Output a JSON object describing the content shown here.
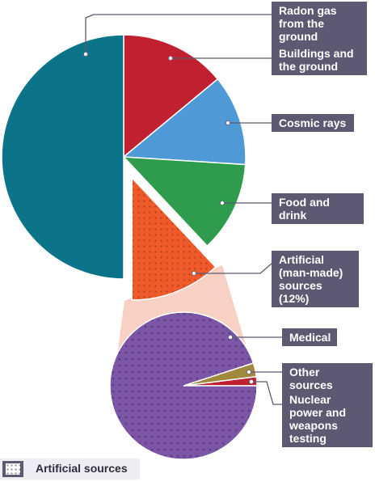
{
  "chart_data": [
    {
      "type": "pie",
      "slices": [
        {
          "label": "Radon gas from the ground",
          "value": 50,
          "color": "#0b7489"
        },
        {
          "label": "Buildings and the ground",
          "value": 14,
          "color": "#c02030"
        },
        {
          "label": "Cosmic rays",
          "value": 12,
          "color": "#4f9ad6"
        },
        {
          "label": "Food and drink",
          "value": 12,
          "color": "#2e9c4c"
        },
        {
          "label": "Artificial (man-made) sources (12%)",
          "value": 12,
          "color": "#ee5a2a",
          "pattern": "dots"
        }
      ]
    },
    {
      "type": "pie",
      "slices": [
        {
          "label": "Medical",
          "value": 95,
          "color": "#7b55a6",
          "pattern": "dots"
        },
        {
          "label": "Other sources",
          "value": 3,
          "color": "#a0883c"
        },
        {
          "label": "Nuclear power and weapons testing",
          "value": 2,
          "color": "#c02030"
        }
      ]
    }
  ],
  "legend": {
    "label": "Artificial sources"
  },
  "colors": {
    "label_bg": "#5c5a72",
    "connector": "#f8d0c4",
    "leader": "#5c5a72"
  }
}
